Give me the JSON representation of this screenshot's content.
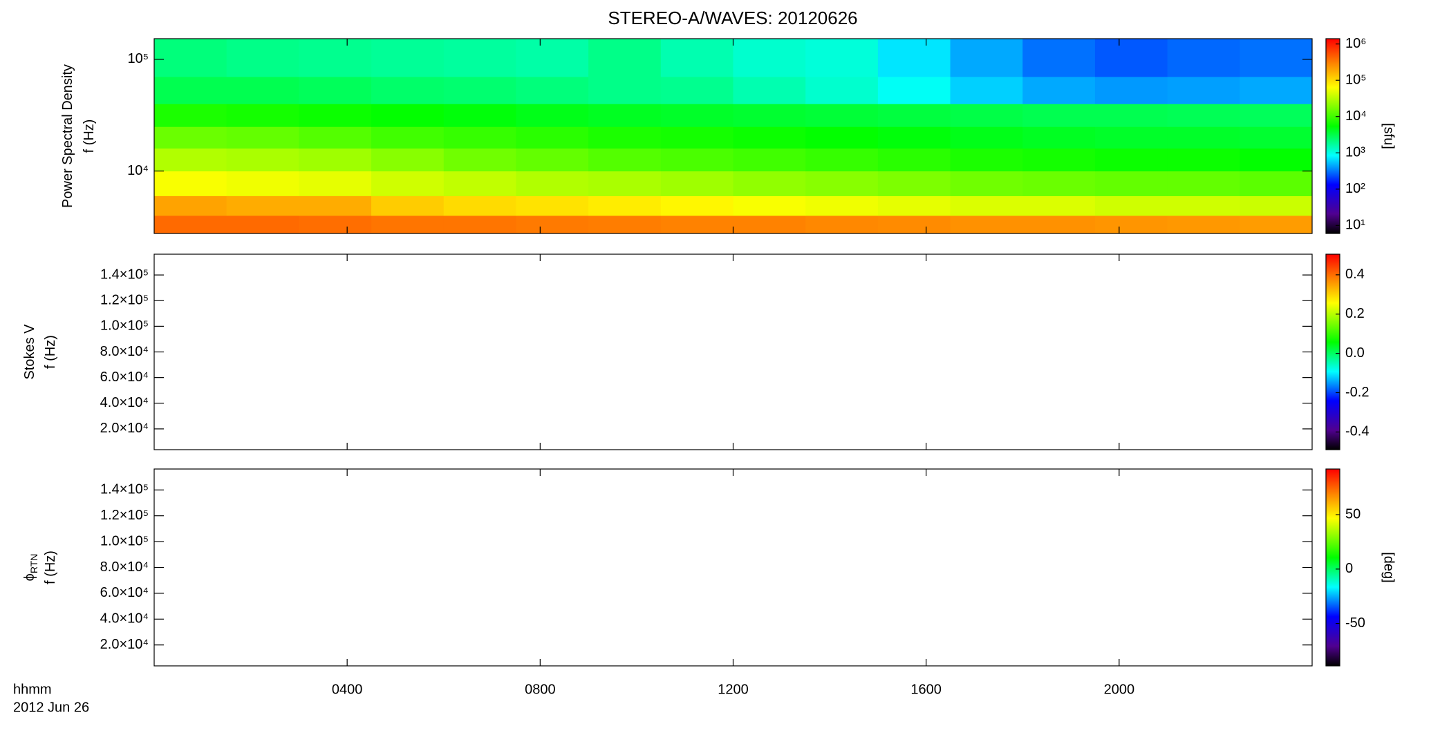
{
  "chart_data": [
    {
      "type": "heatmap",
      "title": "STEREO-A/WAVES: 20120626",
      "ylabel": [
        [
          "Power Spectral Density"
        ],
        [
          "f (Hz)"
        ]
      ],
      "ylog": true,
      "ylim": [
        2760,
        153000
      ],
      "yticks": [
        {
          "value": 10000,
          "label": "10⁴"
        },
        {
          "value": 100000,
          "label": "10⁵"
        }
      ],
      "xlim": [
        0,
        24
      ],
      "xticks": [
        {
          "value": 4,
          "label": "0400"
        },
        {
          "value": 8,
          "label": "0800"
        },
        {
          "value": 12,
          "label": "1200"
        },
        {
          "value": 16,
          "label": "1600"
        },
        {
          "value": 20,
          "label": "2000"
        }
      ],
      "xbins": [
        0,
        1.5,
        3,
        4.5,
        6,
        7.5,
        9,
        10.5,
        12,
        13.5,
        15,
        16.5,
        18,
        19.5,
        21,
        22.5,
        24
      ],
      "ybins": [
        2760,
        4000,
        6000,
        10000,
        16000,
        25000,
        40000,
        70000,
        153000
      ],
      "values": [
        [
          400000,
          400000,
          380000,
          350000,
          350000,
          330000,
          320000,
          300000,
          300000,
          280000,
          270000,
          250000,
          250000,
          240000,
          230000,
          220000
        ],
        [
          200000,
          180000,
          180000,
          120000,
          100000,
          90000,
          80000,
          70000,
          60000,
          55000,
          50000,
          45000,
          45000,
          40000,
          40000,
          38000
        ],
        [
          60000,
          55000,
          50000,
          40000,
          35000,
          30000,
          28000,
          25000,
          22000,
          20000,
          18000,
          16000,
          15000,
          14000,
          14000,
          13000
        ],
        [
          30000,
          28000,
          25000,
          20000,
          16000,
          14000,
          12000,
          11000,
          10000,
          9000,
          8000,
          7000,
          6500,
          6000,
          6000,
          5500
        ],
        [
          15000,
          14000,
          12000,
          10000,
          9000,
          8000,
          7000,
          6500,
          6000,
          5500,
          5000,
          4500,
          4200,
          4000,
          4000,
          3800
        ],
        [
          7000,
          6500,
          6000,
          5500,
          5000,
          4500,
          4200,
          4000,
          3800,
          3600,
          3400,
          3200,
          3000,
          3000,
          2900,
          2800
        ],
        [
          3000,
          3000,
          2800,
          2500,
          2400,
          2200,
          2000,
          1900,
          1500,
          1200,
          900,
          600,
          450,
          400,
          420,
          450
        ],
        [
          2200,
          2000,
          1900,
          1800,
          1700,
          1600,
          2000,
          1500,
          1200,
          1100,
          700,
          450,
          300,
          250,
          280,
          300
        ]
      ],
      "zlog": true,
      "zlim": [
        6,
        1400000
      ],
      "zticks": [
        {
          "value": 10,
          "label": "10¹"
        },
        {
          "value": 100,
          "label": "10²"
        },
        {
          "value": 1000,
          "label": "10³"
        },
        {
          "value": 10000,
          "label": "10⁴"
        },
        {
          "value": 100000,
          "label": "10⁵"
        },
        {
          "value": 1000000,
          "label": "10⁶"
        }
      ],
      "zlabel": "[sfu]"
    },
    {
      "type": "heatmap",
      "ylabel": [
        [
          "Stokes V"
        ],
        [
          "f (Hz)"
        ]
      ],
      "ylim": [
        3800,
        156200
      ],
      "yticks": [
        {
          "value": 20000,
          "label": "2.0×10⁴"
        },
        {
          "value": 40000,
          "label": "4.0×10⁴"
        },
        {
          "value": 60000,
          "label": "6.0×10⁴"
        },
        {
          "value": 80000,
          "label": "8.0×10⁴"
        },
        {
          "value": 100000,
          "label": "1.0×10⁵"
        },
        {
          "value": 120000,
          "label": "1.2×10⁵"
        },
        {
          "value": 140000,
          "label": "1.4×10⁵"
        }
      ],
      "xlim": [
        0,
        24
      ],
      "xticks": [
        {
          "value": 4,
          "label": "0400"
        },
        {
          "value": 8,
          "label": "0800"
        },
        {
          "value": 12,
          "label": "1200"
        },
        {
          "value": 16,
          "label": "1600"
        },
        {
          "value": 20,
          "label": "2000"
        }
      ],
      "zlim": [
        -0.49,
        0.505
      ],
      "zticks": [
        -0.4,
        -0.2,
        {
          "value": 0,
          "label": "0.0"
        },
        0.2,
        0.4
      ]
    },
    {
      "type": "heatmap",
      "ylabel": [
        [
          "ϕ",
          "RTN"
        ],
        [
          "f (Hz)"
        ]
      ],
      "ylim": [
        3800,
        156200
      ],
      "yticks": [
        {
          "value": 20000,
          "label": "2.0×10⁴"
        },
        {
          "value": 40000,
          "label": "4.0×10⁴"
        },
        {
          "value": 60000,
          "label": "6.0×10⁴"
        },
        {
          "value": 80000,
          "label": "8.0×10⁴"
        },
        {
          "value": 100000,
          "label": "1.0×10⁵"
        },
        {
          "value": 120000,
          "label": "1.2×10⁵"
        },
        {
          "value": 140000,
          "label": "1.4×10⁵"
        }
      ],
      "xlim": [
        0,
        24
      ],
      "xticks": [
        {
          "value": 4,
          "label": "0400"
        },
        {
          "value": 8,
          "label": "0800"
        },
        {
          "value": 12,
          "label": "1200"
        },
        {
          "value": 16,
          "label": "1600"
        },
        {
          "value": 20,
          "label": "2000"
        }
      ],
      "xlabel": [
        "hhmm",
        "2012 Jun 26"
      ],
      "zlim": [
        -89,
        92
      ],
      "zticks": [
        -50,
        0,
        50
      ],
      "zlabel": "[deg]"
    }
  ]
}
